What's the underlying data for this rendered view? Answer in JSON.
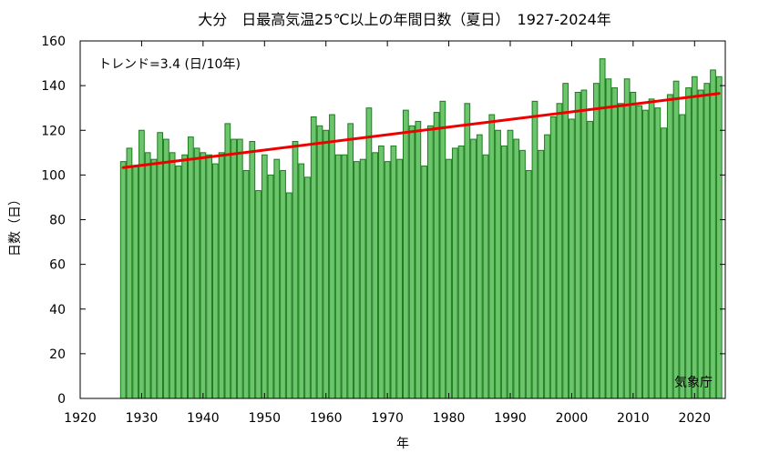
{
  "chart_data": {
    "type": "bar",
    "title": "大分　日最高気温25℃以上の年間日数（夏日）　1927-2024年",
    "xlabel": "年",
    "ylabel": "日数（日）",
    "trend_label": "トレンド=3.4 (日/10年)",
    "source": "気象庁",
    "xlim": [
      1920,
      2025
    ],
    "ylim": [
      0,
      160
    ],
    "x_ticks": [
      1920,
      1930,
      1940,
      1950,
      1960,
      1970,
      1980,
      1990,
      2000,
      2010,
      2020
    ],
    "y_ticks": [
      0,
      20,
      40,
      60,
      80,
      100,
      120,
      140,
      160
    ],
    "grid": false,
    "colors": {
      "bar_fill": "#6cc46c",
      "bar_edge": "#1e7d1e",
      "trend": "#ee0000"
    },
    "trend": {
      "x": [
        1927,
        2024
      ],
      "y": [
        103.3,
        136.5
      ]
    },
    "years": [
      1927,
      1928,
      1929,
      1930,
      1931,
      1932,
      1933,
      1934,
      1935,
      1936,
      1937,
      1938,
      1939,
      1940,
      1941,
      1942,
      1943,
      1944,
      1945,
      1946,
      1947,
      1948,
      1949,
      1950,
      1951,
      1952,
      1953,
      1954,
      1955,
      1956,
      1957,
      1958,
      1959,
      1960,
      1961,
      1962,
      1963,
      1964,
      1965,
      1966,
      1967,
      1968,
      1969,
      1970,
      1971,
      1972,
      1973,
      1974,
      1975,
      1976,
      1977,
      1978,
      1979,
      1980,
      1981,
      1982,
      1983,
      1984,
      1985,
      1986,
      1987,
      1988,
      1989,
      1990,
      1991,
      1992,
      1993,
      1994,
      1995,
      1996,
      1997,
      1998,
      1999,
      2000,
      2001,
      2002,
      2003,
      2004,
      2005,
      2006,
      2007,
      2008,
      2009,
      2010,
      2011,
      2012,
      2013,
      2014,
      2015,
      2016,
      2017,
      2018,
      2019,
      2020,
      2021,
      2022,
      2023,
      2024
    ],
    "values": [
      106,
      112,
      104,
      120,
      110,
      107,
      119,
      116,
      110,
      104,
      109,
      117,
      112,
      110,
      109,
      105,
      110,
      123,
      116,
      116,
      102,
      115,
      93,
      109,
      100,
      107,
      102,
      92,
      115,
      105,
      99,
      126,
      122,
      120,
      127,
      109,
      109,
      123,
      106,
      107,
      130,
      110,
      113,
      106,
      113,
      107,
      129,
      122,
      124,
      104,
      122,
      128,
      133,
      107,
      112,
      113,
      132,
      116,
      118,
      109,
      127,
      120,
      113,
      120,
      116,
      111,
      102,
      133,
      111,
      118,
      126,
      132,
      141,
      125,
      137,
      138,
      124,
      141,
      152,
      143,
      139,
      132,
      143,
      137,
      131,
      129,
      134,
      130,
      121,
      136,
      142,
      127,
      139,
      144,
      138,
      141,
      147,
      144
    ]
  }
}
